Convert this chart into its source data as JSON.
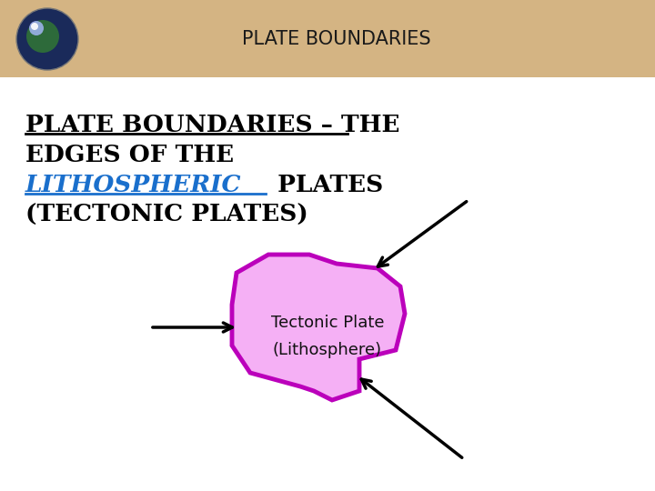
{
  "bg_color": "#ffffff",
  "header_bg_color": "#d4b483",
  "header_text": "PLATE BOUNDARIES",
  "header_text_color": "#1a1a1a",
  "header_font_size": 15,
  "title_color": "#000000",
  "title_underline_color": "#000000",
  "litho_color": "#1a6fcc",
  "litho_underline_color": "#1a6fcc",
  "title_font_size": 19,
  "blob_fill_color": "#f5b0f5",
  "blob_edge_color": "#bb00bb",
  "label_text_line1": "Tectonic Plate",
  "label_text_line2": "(Lithosphere)",
  "label_font_size": 13
}
